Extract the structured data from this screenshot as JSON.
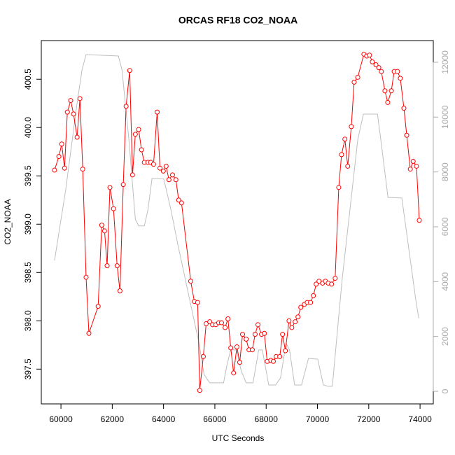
{
  "chart_data": {
    "type": "line",
    "title": "ORCAS RF18 CO2_NOAA",
    "xlabel": "UTC Seconds",
    "ylabel": "CO2_NOAA",
    "xlim": [
      59234,
      74516
    ],
    "ylim": [
      397.14,
      400.9
    ],
    "y2lim": [
      -460,
      12790
    ],
    "xticks": [
      60000,
      62000,
      64000,
      66000,
      68000,
      70000,
      72000,
      74000
    ],
    "yticks": [
      397.5,
      {
        "value": 398,
        "label": "398.0"
      },
      398.5,
      {
        "value": 399,
        "label": "399.0"
      },
      399.5,
      {
        "value": 400,
        "label": "400.0"
      },
      400.5
    ],
    "y2ticks": [
      0,
      2000,
      4000,
      6000,
      8000,
      10000,
      12000
    ],
    "series": [
      {
        "color": "#ff0000",
        "marker": "circle",
        "x": [
          59750,
          59920,
          60030,
          60140,
          60250,
          60380,
          60490,
          60630,
          60740,
          60850,
          60980,
          61090,
          61450,
          61590,
          61700,
          61800,
          61910,
          62050,
          62190,
          62300,
          62430,
          62540,
          62680,
          62790,
          62900,
          63030,
          63140,
          63250,
          63390,
          63500,
          63610,
          63750,
          63860,
          63990,
          64100,
          64210,
          64350,
          64480,
          64590,
          64700,
          65060,
          65200,
          65330,
          65410,
          65550,
          65660,
          65800,
          65910,
          66040,
          66150,
          66260,
          66400,
          66510,
          66620,
          66730,
          66860,
          66970,
          67080,
          67220,
          67330,
          67460,
          67570,
          67680,
          67820,
          67930,
          68040,
          68180,
          68280,
          68390,
          68530,
          68640,
          68750,
          68890,
          69000,
          69130,
          69240,
          69350,
          69490,
          69600,
          69730,
          69840,
          69950,
          70060,
          70200,
          70310,
          70420,
          70550,
          70690,
          70830,
          70940,
          71070,
          71180,
          71320,
          71430,
          71570,
          71810,
          71920,
          72030,
          72140,
          72280,
          72390,
          72490,
          72630,
          72740,
          72880,
          72990,
          73120,
          73230,
          73370,
          73480,
          73620,
          73730,
          73860,
          73970
        ],
        "values": [
          399.56,
          399.7,
          399.83,
          399.58,
          400.16,
          400.28,
          400.14,
          399.9,
          400.3,
          399.57,
          398.45,
          397.87,
          398.15,
          398.99,
          398.93,
          398.57,
          399.38,
          399.16,
          398.57,
          398.31,
          399.41,
          400.22,
          400.59,
          399.51,
          399.93,
          399.98,
          399.77,
          399.64,
          399.64,
          399.64,
          399.62,
          400.16,
          399.58,
          399.55,
          399.6,
          399.46,
          399.51,
          399.46,
          399.25,
          399.22,
          398.41,
          398.2,
          398.19,
          397.28,
          397.63,
          397.97,
          397.99,
          397.96,
          397.96,
          397.98,
          397.98,
          397.93,
          398.02,
          397.72,
          397.46,
          397.73,
          397.57,
          397.86,
          397.81,
          397.7,
          397.7,
          397.86,
          397.96,
          397.86,
          397.87,
          397.58,
          397.59,
          397.58,
          397.63,
          397.63,
          397.86,
          397.69,
          398.0,
          397.93,
          397.99,
          398.04,
          398.14,
          398.17,
          398.19,
          398.19,
          398.26,
          398.38,
          398.41,
          398.39,
          398.41,
          398.39,
          398.38,
          398.44,
          399.38,
          399.72,
          399.88,
          399.6,
          400.01,
          400.47,
          400.52,
          400.76,
          400.74,
          400.75,
          400.68,
          400.65,
          400.62,
          400.58,
          400.38,
          400.26,
          400.38,
          400.58,
          400.58,
          400.51,
          400.2,
          399.92,
          399.57,
          399.65,
          399.6,
          399.04
        ]
      },
      {
        "color": "#bebebe",
        "axis": "y2",
        "x": [
          59750,
          60190,
          60600,
          60820,
          60980,
          62240,
          62380,
          62650,
          62900,
          63030,
          63250,
          63390,
          63550,
          63660,
          64010,
          64290,
          64560,
          64970,
          65380,
          65580,
          65800,
          66340,
          66480,
          66620,
          66840,
          67030,
          67220,
          67490,
          67710,
          67850,
          68100,
          68370,
          68560,
          68780,
          68910,
          69110,
          69380,
          69650,
          70010,
          70230,
          70420,
          70580,
          70960,
          71570,
          71790,
          72340,
          72470,
          72750,
          73290,
          73840,
          73950
        ],
        "values": [
          4770,
          7380,
          10310,
          11720,
          12280,
          12230,
          11720,
          9170,
          6280,
          6030,
          6030,
          6610,
          7760,
          7760,
          7740,
          6610,
          5340,
          3550,
          1760,
          610,
          310,
          310,
          1000,
          1510,
          1510,
          740,
          310,
          310,
          1510,
          1510,
          230,
          230,
          490,
          1760,
          1510,
          230,
          230,
          1200,
          1170,
          230,
          180,
          180,
          4060,
          9170,
          10110,
          10110,
          9170,
          7070,
          7050,
          3290,
          2660
        ]
      }
    ]
  }
}
